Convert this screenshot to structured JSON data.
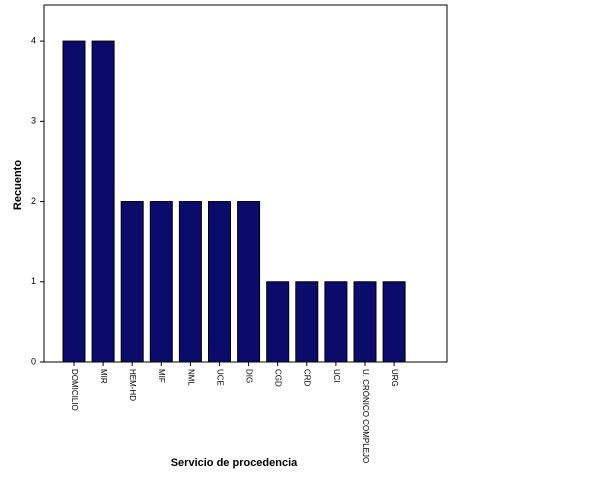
{
  "chart_data": {
    "type": "bar",
    "categories": [
      "DOMICILIO",
      "MIR",
      "HEM-HD",
      "MIF",
      "NML",
      "UCE",
      "DIG",
      "CGD",
      "CRD",
      "UCI",
      "U. CRÓNICO COMPLEJO",
      "URG"
    ],
    "values": [
      4,
      4,
      2,
      2,
      2,
      2,
      2,
      1,
      1,
      1,
      1,
      1
    ],
    "color": "#0b0b6b",
    "ylim": [
      0,
      4.45
    ],
    "yticks": [
      0,
      1,
      2,
      3,
      4
    ],
    "x_label": "Servicio de procedencia",
    "y_label": "Recuento"
  }
}
